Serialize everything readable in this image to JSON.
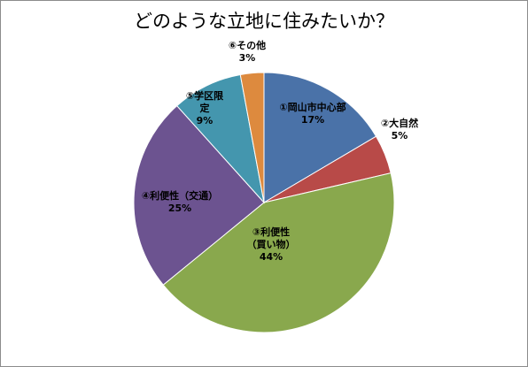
{
  "chart_data": {
    "type": "pie",
    "title": "どのような立地に住みたいか？",
    "slices": [
      {
        "label_lines": [
          "①岡山市中心部"
        ],
        "percent_label": "17%",
        "value": 17,
        "color": "#4a72a8"
      },
      {
        "label_lines": [
          "②大自然"
        ],
        "percent_label": "5%",
        "value": 5,
        "color": "#b84a48"
      },
      {
        "label_lines": [
          "③利便性",
          "（買い物）"
        ],
        "percent_label": "44%",
        "value": 44,
        "color": "#89a84d"
      },
      {
        "label_lines": [
          "④利便性（交通）"
        ],
        "percent_label": "25%",
        "value": 25,
        "color": "#6c5390"
      },
      {
        "label_lines": [
          "⑤学区限",
          "定"
        ],
        "percent_label": "9%",
        "value": 9,
        "color": "#4496ae"
      },
      {
        "label_lines": [
          "⑥その他"
        ],
        "percent_label": "3%",
        "value": 3,
        "color": "#dd8a3e"
      }
    ],
    "start_angle_deg": 0,
    "direction": "clockwise",
    "legend": "none"
  }
}
